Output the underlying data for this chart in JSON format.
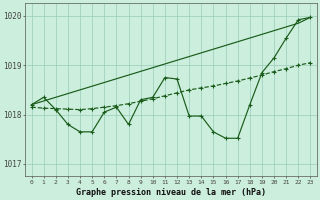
{
  "title": "Graphe pression niveau de la mer (hPa)",
  "bg_color": "#cceedd",
  "grid_color": "#99ccbb",
  "line_color": "#1a5c1a",
  "x_labels": [
    "0",
    "1",
    "2",
    "3",
    "4",
    "5",
    "6",
    "7",
    "8",
    "9",
    "10",
    "11",
    "12",
    "13",
    "14",
    "15",
    "16",
    "17",
    "18",
    "19",
    "20",
    "21",
    "22",
    "23"
  ],
  "ylim": [
    1016.75,
    1020.25
  ],
  "yticks": [
    1017,
    1018,
    1019,
    1020
  ],
  "series1": [
    1018.2,
    1018.35,
    1018.1,
    1017.8,
    1017.65,
    1017.65,
    1018.05,
    1018.15,
    1017.8,
    1018.3,
    1018.35,
    1018.75,
    1018.72,
    1017.97,
    1017.97,
    1017.65,
    1017.52,
    1017.52,
    1018.2,
    1018.85,
    1019.15,
    1019.55,
    1019.92,
    1019.97
  ],
  "series2": [
    1018.15,
    1018.13,
    1018.12,
    1018.11,
    1018.1,
    1018.12,
    1018.15,
    1018.18,
    1018.22,
    1018.27,
    1018.32,
    1018.38,
    1018.44,
    1018.5,
    1018.54,
    1018.58,
    1018.63,
    1018.68,
    1018.74,
    1018.8,
    1018.87,
    1018.93,
    1019.0,
    1019.05
  ],
  "series3": [
    1018.2,
    1018.275,
    1018.35,
    1018.425,
    1018.5,
    1018.575,
    1018.65,
    1018.725,
    1018.8,
    1018.875,
    1018.95,
    1019.025,
    1019.1,
    1019.175,
    1019.25,
    1019.325,
    1019.4,
    1019.475,
    1019.55,
    1019.625,
    1019.7,
    1019.775,
    1019.85,
    1019.97
  ]
}
